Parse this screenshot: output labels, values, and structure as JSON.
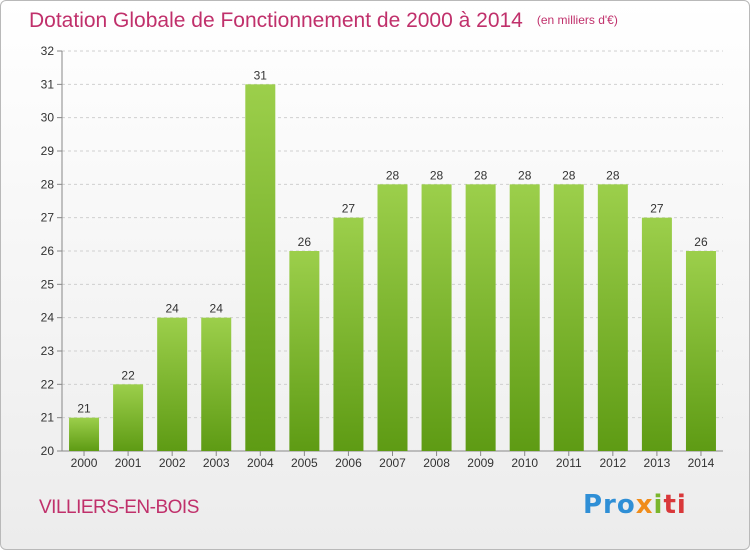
{
  "header": {
    "title": "Dotation Globale de Fonctionnement de 2000 à 2014",
    "unit": "(en milliers d'€)"
  },
  "footer": {
    "town": "VILLIERS-EN-BOIS",
    "logo_parts": [
      "Pro",
      "x",
      "i",
      "ti"
    ]
  },
  "colors": {
    "accent": "#c0306b",
    "bar_top": "#9ccf4b",
    "bar_bottom": "#5e9b14",
    "grid": "#d0d0d0"
  },
  "chart_data": {
    "type": "bar",
    "title": "Dotation Globale de Fonctionnement de 2000 à 2014",
    "subtitle": "(en milliers d'€)",
    "xlabel": "",
    "ylabel": "",
    "categories": [
      "2000",
      "2001",
      "2002",
      "2003",
      "2004",
      "2005",
      "2006",
      "2007",
      "2008",
      "2009",
      "2010",
      "2011",
      "2012",
      "2013",
      "2014"
    ],
    "values": [
      21,
      22,
      24,
      24,
      31,
      26,
      27,
      28,
      28,
      28,
      28,
      28,
      28,
      27,
      26
    ],
    "ylim": [
      20,
      32
    ],
    "yticks": [
      20,
      21,
      22,
      23,
      24,
      25,
      26,
      27,
      28,
      29,
      30,
      31,
      32
    ],
    "grid": true,
    "grid_style": "dashed-horizontal",
    "legend": "none",
    "data_labels": true
  }
}
